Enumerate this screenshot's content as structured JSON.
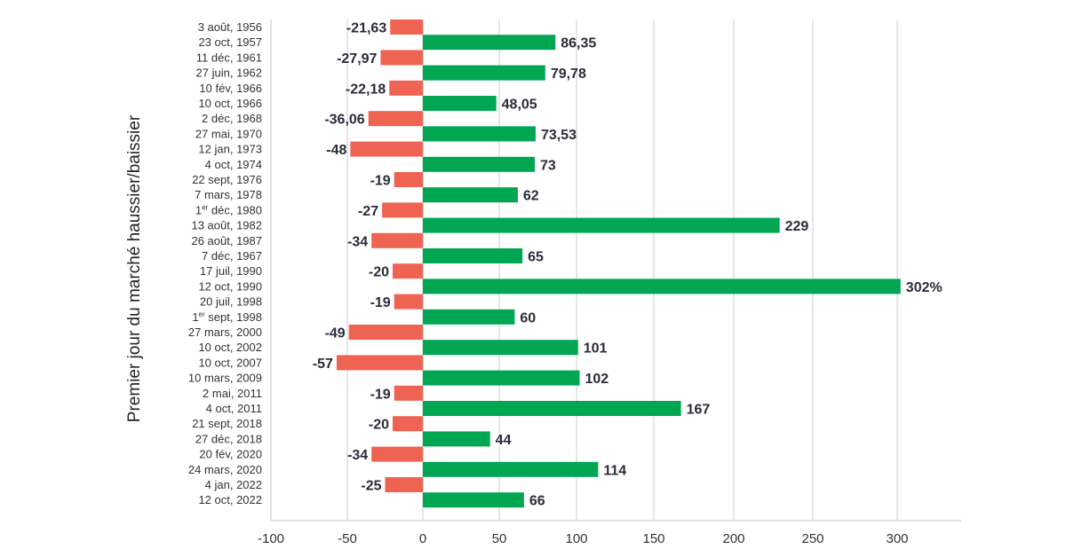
{
  "chart_data": {
    "type": "bar",
    "orientation": "horizontal",
    "title": "",
    "xlabel": "",
    "ylabel": "Premier jour du marché haussier/baissier",
    "xlim": [
      -100,
      340
    ],
    "xticks": [
      "-100",
      "-50",
      "0",
      "50",
      "100",
      "150",
      "200",
      "250",
      "300"
    ],
    "xtick_values": [
      -100,
      -50,
      0,
      50,
      100,
      150,
      200,
      250,
      300
    ],
    "grid": "vertical",
    "colors": {
      "negative": "#ee6352",
      "positive": "#00a651"
    },
    "categories": [
      "3 août, 1956",
      "23 oct, 1957",
      "11 déc, 1961",
      "27 juin, 1962",
      "10 fév, 1966",
      "10 oct, 1966",
      "2 déc, 1968",
      "27 mai, 1970",
      "12 jan, 1973",
      "4 oct, 1974",
      "22 sept, 1976",
      "7 mars, 1978",
      "1er déc, 1980",
      "13 août, 1982",
      "26 août, 1987",
      "7 déc, 1967",
      "17 juil, 1990",
      "12 oct, 1990",
      "20 juil, 1998",
      "1er sept, 1998",
      "27 mars, 2000",
      "10 oct, 2002",
      "10 oct, 2007",
      "10 mars, 2009",
      "2 mai, 2011",
      "4 oct, 2011",
      "21 sept, 2018",
      "27 déc, 2018",
      "20 fév, 2020",
      "24 mars, 2020",
      "4 jan, 2022",
      "12 oct, 2022"
    ],
    "values": [
      -21.63,
      86.35,
      -27.97,
      79.78,
      -22.18,
      48.05,
      -36.06,
      73.53,
      -48,
      73,
      -19,
      62,
      -27,
      229,
      -34,
      65,
      -20,
      302,
      -19,
      60,
      -49,
      101,
      -57,
      102,
      -19,
      167,
      -20,
      44,
      -34,
      114,
      -25,
      66
    ],
    "data_labels": [
      "-21,63",
      "86,35",
      "-27,97",
      "79,78",
      "-22,18",
      "48,05",
      "-36,06",
      "73,53",
      "-48",
      "73",
      "-19",
      "62",
      "-27",
      "229",
      "-34",
      "65",
      "-20",
      "302%",
      "-19",
      "60",
      "-49",
      "101",
      "-57",
      "102",
      "-19",
      "167",
      "-20",
      "44",
      "-34",
      "114",
      "-25",
      "66"
    ]
  }
}
